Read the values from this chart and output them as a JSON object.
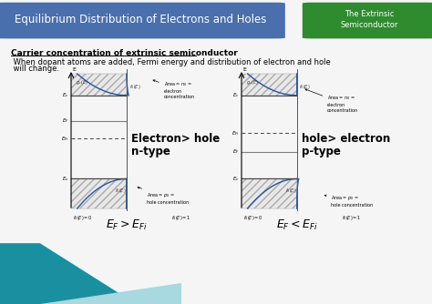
{
  "title": "Equilibrium Distribution of Electrons and Holes",
  "subtitle_box": "The Extrinsic\nSemiconductor",
  "title_bg": "#4a6fad",
  "subtitle_bg": "#2e8b2e",
  "underlined_text": "Carrier concentration of extrinsic semiconductor",
  "body_text1": " When dopant atoms are added, Fermi energy and distribution of electron and hole",
  "body_text2": " will change.",
  "label_left1": "Electron> hole",
  "label_left2": "n-type",
  "label_right1": "hole> electron",
  "label_right2": "p-type",
  "formula_left": "$E_F>E_{Fi}$",
  "formula_right": "$E_F<E_{Fi}$",
  "annot_elec": "Area = $n_0$ =\nelectron\nconcentration",
  "annot_hole": "Area = $p_0$ =\nhole concentration",
  "bg_color": "#f5f5f5",
  "bottom_teal": "#1a8fa0",
  "bottom_light": "#a8d8e0"
}
